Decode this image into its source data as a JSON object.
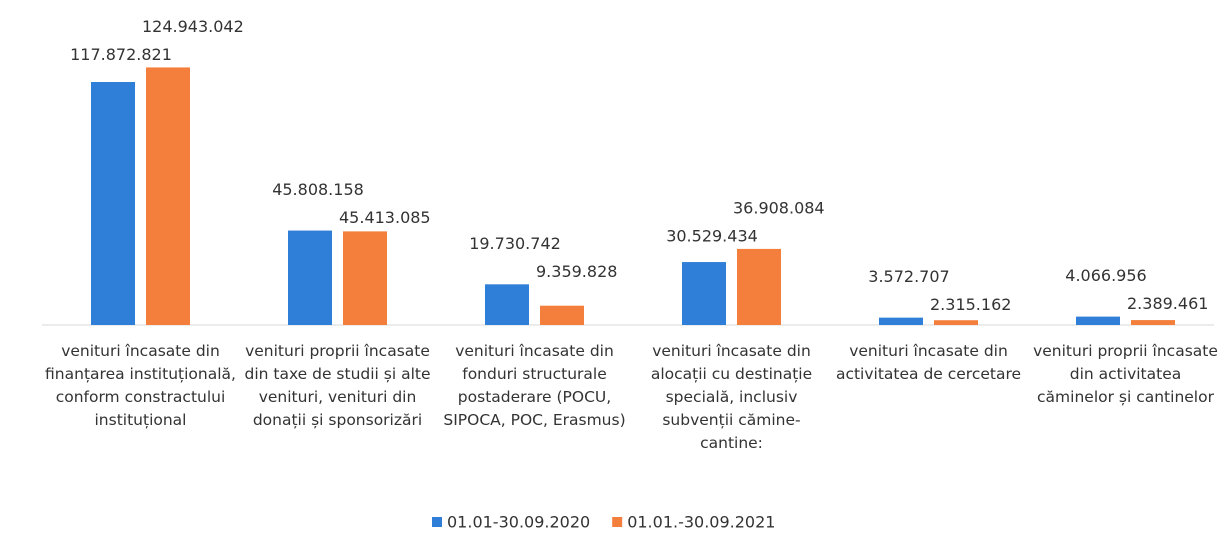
{
  "chart_data": {
    "type": "bar",
    "categories": [
      "venituri încasate din finanțarea instituțională, conform constractului instituțional",
      "venituri proprii încasate din taxe de studii și alte venituri, venituri din donații și sponsorizări",
      "venituri încasate din fonduri structurale postaderare (POCU, SIPOCA, POC, Erasmus)",
      "venituri încasate din alocații cu destinație specială, inclusiv subvenții cămine-cantine:",
      "venituri încasate din activitatea de cercetare",
      "venituri proprii încasate din activitatea căminelor și cantinelor"
    ],
    "series": [
      {
        "name": "01.01-30.09.2020",
        "color": "#2f7ed8",
        "values": [
          117872821,
          45808158,
          19730742,
          30529434,
          3572707,
          4066956
        ],
        "value_labels": [
          "117.872.821",
          "45.808.158",
          "19.730.742",
          "30.529.434",
          "3.572.707",
          "4.066.956"
        ]
      },
      {
        "name": "01.01.-30.09.2021",
        "color": "#f47e3c",
        "values": [
          124943042,
          45413085,
          9359828,
          36908084,
          2315162,
          2389461
        ],
        "value_labels": [
          "124.943.042",
          "45.413.085",
          "9.359.828",
          "36.908.084",
          "2.315.162",
          "2.389.461"
        ]
      }
    ],
    "ylim": [
      0,
      130000000
    ],
    "legend": "bottom"
  }
}
